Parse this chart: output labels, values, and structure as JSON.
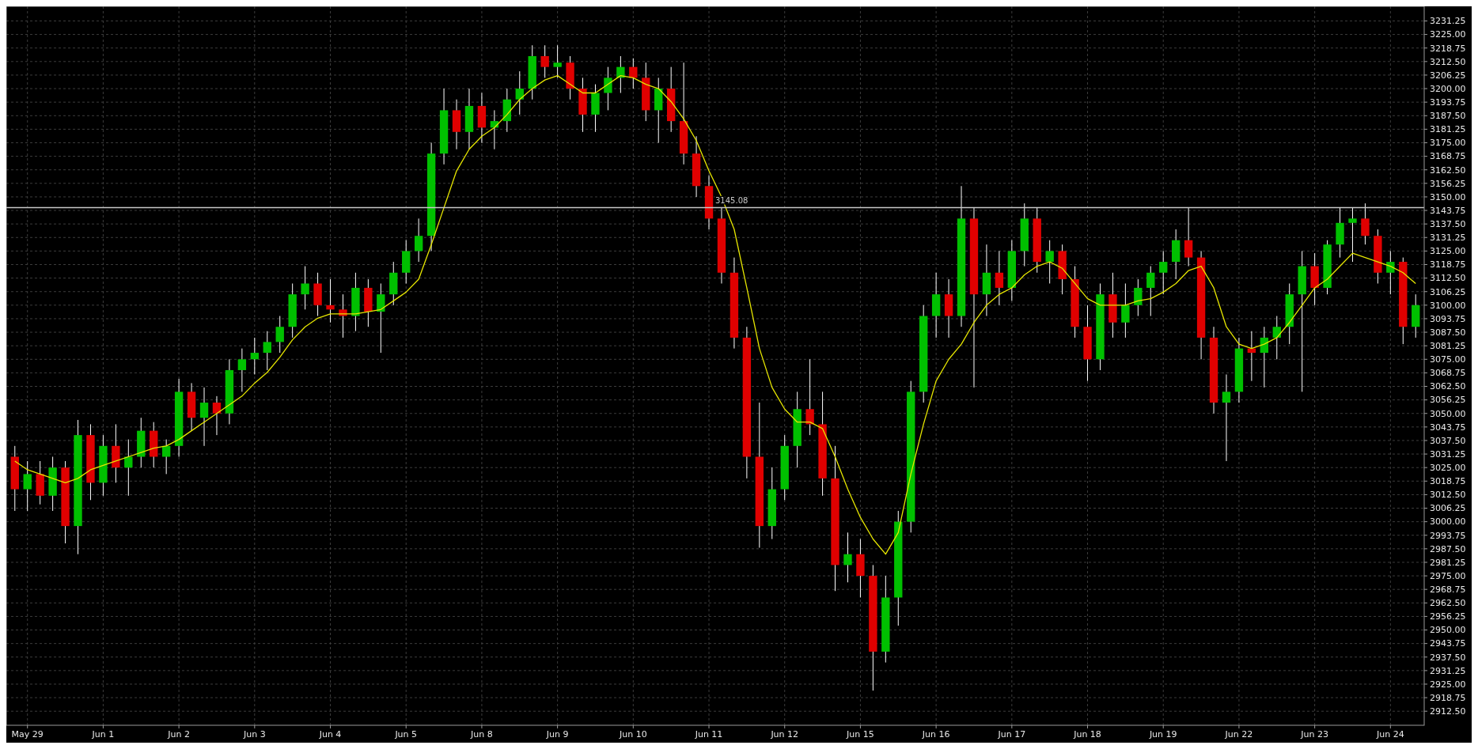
{
  "chart_data": {
    "type": "candlestick",
    "categories": [
      null,
      "May 29",
      null,
      null,
      null,
      null,
      null,
      "Jun 1",
      null,
      null,
      null,
      null,
      null,
      "Jun 2",
      null,
      null,
      null,
      null,
      null,
      "Jun 3",
      null,
      null,
      null,
      null,
      null,
      "Jun 4",
      null,
      null,
      null,
      null,
      null,
      "Jun 5",
      null,
      null,
      null,
      null,
      null,
      "Jun 8",
      null,
      null,
      null,
      null,
      null,
      "Jun 9",
      null,
      null,
      null,
      null,
      null,
      "Jun 10",
      null,
      null,
      null,
      null,
      null,
      "Jun 11",
      null,
      null,
      null,
      null,
      null,
      "Jun 12",
      null,
      null,
      null,
      null,
      null,
      "Jun 15",
      null,
      null,
      null,
      null,
      null,
      "Jun 16",
      null,
      null,
      null,
      null,
      null,
      "Jun 17",
      null,
      null,
      null,
      null,
      null,
      "Jun 18",
      null,
      null,
      null,
      null,
      null,
      "Jun 19",
      null,
      null,
      null,
      null,
      null,
      "Jun 22",
      null,
      null,
      null,
      null,
      null,
      "Jun 23",
      null,
      null,
      null,
      null,
      null,
      "Jun 24",
      null,
      null
    ],
    "ylim": [
      2906,
      3238
    ],
    "yticks": [
      {
        "value": 2912.5,
        "label": "2912.50"
      },
      2918.75,
      {
        "value": 2925,
        "label": "2925.00"
      },
      2931.25,
      {
        "value": 2937.5,
        "label": "2937.50"
      },
      2943.75,
      {
        "value": 2950,
        "label": "2950.00"
      },
      2956.25,
      {
        "value": 2962.5,
        "label": "2962.50"
      },
      2968.75,
      {
        "value": 2975,
        "label": "2975.00"
      },
      2981.25,
      {
        "value": 2987.5,
        "label": "2987.50"
      },
      2993.75,
      {
        "value": 3000,
        "label": "3000.00"
      },
      3006.25,
      {
        "value": 3012.5,
        "label": "3012.50"
      },
      3018.75,
      {
        "value": 3025,
        "label": "3025.00"
      },
      3031.25,
      {
        "value": 3037.5,
        "label": "3037.50"
      },
      3043.75,
      {
        "value": 3050,
        "label": "3050.00"
      },
      3056.25,
      {
        "value": 3062.5,
        "label": "3062.50"
      },
      3068.75,
      {
        "value": 3075,
        "label": "3075.00"
      },
      3081.25,
      {
        "value": 3087.5,
        "label": "3087.50"
      },
      3093.75,
      {
        "value": 3100,
        "label": "3100.00"
      },
      3106.25,
      {
        "value": 3112.5,
        "label": "3112.50"
      },
      3118.75,
      {
        "value": 3125,
        "label": "3125.00"
      },
      3131.25,
      {
        "value": 3137.5,
        "label": "3137.50"
      },
      3143.75,
      {
        "value": 3150,
        "label": "3150.00"
      },
      3156.25,
      {
        "value": 3162.5,
        "label": "3162.50"
      },
      3168.75,
      {
        "value": 3175,
        "label": "3175.00"
      },
      3181.25,
      {
        "value": 3187.5,
        "label": "3187.50"
      },
      3193.75,
      {
        "value": 3200,
        "label": "3200.00"
      },
      3206.25,
      {
        "value": 3212.5,
        "label": "3212.50"
      },
      3218.75,
      {
        "value": 3225,
        "label": "3225.00"
      },
      3231.25
    ],
    "grid": true,
    "ref_lines": [
      {
        "axis": "y",
        "value": 3145.08,
        "label": "3145.08",
        "color": "#c8c8c8"
      }
    ],
    "series": [
      {
        "type": "line",
        "color": "#e6e600",
        "values": [
          3028,
          3024,
          3022,
          3020,
          3018,
          3020,
          3024,
          3026,
          3028,
          3030,
          3032,
          3034,
          3035,
          3038,
          3042,
          3046,
          3050,
          3054,
          3058,
          3064,
          3069,
          3076,
          3084,
          3090,
          3094,
          3096,
          3096,
          3096,
          3097,
          3098,
          3102,
          3106,
          3112,
          3128,
          3145,
          3162,
          3172,
          3178,
          3182,
          3188,
          3195,
          3200,
          3204,
          3206,
          3202,
          3198,
          3198,
          3202,
          3206,
          3205,
          3202,
          3200,
          3194,
          3186,
          3176,
          3162,
          3150,
          3135,
          3108,
          3080,
          3062,
          3052,
          3046,
          3046,
          3043,
          3030,
          3015,
          3002,
          2992,
          2985,
          2995,
          3022,
          3045,
          3065,
          3075,
          3082,
          3092,
          3100,
          3105,
          3108,
          3114,
          3118,
          3120,
          3117,
          3110,
          3103,
          3100,
          3100,
          3100,
          3102,
          3103,
          3106,
          3110,
          3116,
          3118,
          3108,
          3090,
          3082,
          3080,
          3082,
          3085,
          3092,
          3100,
          3108,
          3112,
          3118,
          3124,
          3122,
          3120,
          3118,
          3115,
          3110
        ]
      },
      {
        "ohlc": [
          [
            3030,
            3035,
            3005,
            3015
          ],
          [
            3015,
            3028,
            3005,
            3022
          ],
          [
            3022,
            3028,
            3008,
            3012
          ],
          [
            3012,
            3030,
            3005,
            3025
          ],
          [
            3025,
            3028,
            2990,
            2998
          ],
          [
            2998,
            3047,
            2985,
            3040
          ],
          [
            3040,
            3045,
            3010,
            3018
          ],
          [
            3018,
            3040,
            3012,
            3035
          ],
          [
            3035,
            3045,
            3018,
            3025
          ],
          [
            3025,
            3038,
            3012,
            3030
          ],
          [
            3030,
            3048,
            3025,
            3042
          ],
          [
            3042,
            3046,
            3025,
            3030
          ],
          [
            3030,
            3038,
            3022,
            3035
          ],
          [
            3035,
            3066,
            3030,
            3060
          ],
          [
            3060,
            3064,
            3042,
            3048
          ],
          [
            3048,
            3062,
            3035,
            3055
          ],
          [
            3055,
            3058,
            3040,
            3050
          ],
          [
            3050,
            3075,
            3045,
            3070
          ],
          [
            3070,
            3080,
            3060,
            3075
          ],
          [
            3075,
            3085,
            3068,
            3078
          ],
          [
            3078,
            3088,
            3070,
            3083
          ],
          [
            3083,
            3095,
            3078,
            3090
          ],
          [
            3090,
            3110,
            3085,
            3105
          ],
          [
            3105,
            3118,
            3098,
            3110
          ],
          [
            3110,
            3115,
            3095,
            3100
          ],
          [
            3100,
            3112,
            3092,
            3098
          ],
          [
            3098,
            3105,
            3085,
            3095
          ],
          [
            3095,
            3115,
            3088,
            3108
          ],
          [
            3108,
            3112,
            3090,
            3097
          ],
          [
            3097,
            3110,
            3078,
            3105
          ],
          [
            3105,
            3120,
            3100,
            3115
          ],
          [
            3115,
            3130,
            3110,
            3125
          ],
          [
            3125,
            3140,
            3120,
            3132
          ],
          [
            3132,
            3175,
            3125,
            3170
          ],
          [
            3170,
            3200,
            3165,
            3190
          ],
          [
            3190,
            3195,
            3172,
            3180
          ],
          [
            3180,
            3200,
            3172,
            3192
          ],
          [
            3192,
            3198,
            3175,
            3182
          ],
          [
            3182,
            3190,
            3172,
            3185
          ],
          [
            3185,
            3200,
            3180,
            3195
          ],
          [
            3195,
            3208,
            3188,
            3200
          ],
          [
            3200,
            3220,
            3195,
            3215
          ],
          [
            3215,
            3220,
            3205,
            3210
          ],
          [
            3210,
            3220,
            3205,
            3212
          ],
          [
            3212,
            3215,
            3195,
            3200
          ],
          [
            3200,
            3205,
            3180,
            3188
          ],
          [
            3188,
            3202,
            3180,
            3198
          ],
          [
            3198,
            3210,
            3190,
            3205
          ],
          [
            3205,
            3215,
            3198,
            3210
          ],
          [
            3210,
            3214,
            3200,
            3205
          ],
          [
            3205,
            3212,
            3185,
            3190
          ],
          [
            3190,
            3205,
            3175,
            3200
          ],
          [
            3200,
            3210,
            3180,
            3185
          ],
          [
            3185,
            3212,
            3165,
            3170
          ],
          [
            3170,
            3178,
            3150,
            3155
          ],
          [
            3155,
            3160,
            3135,
            3140
          ],
          [
            3140,
            3145,
            3110,
            3115
          ],
          [
            3115,
            3122,
            3080,
            3085
          ],
          [
            3085,
            3090,
            3020,
            3030
          ],
          [
            3030,
            3055,
            2988,
            2998
          ],
          [
            2998,
            3025,
            2992,
            3015
          ],
          [
            3015,
            3040,
            3010,
            3035
          ],
          [
            3035,
            3060,
            3025,
            3052
          ],
          [
            3052,
            3075,
            3040,
            3045
          ],
          [
            3045,
            3060,
            3012,
            3020
          ],
          [
            3020,
            3035,
            2968,
            2980
          ],
          [
            2980,
            2995,
            2972,
            2985
          ],
          [
            2985,
            2992,
            2965,
            2975
          ],
          [
            2975,
            2980,
            2922,
            2940
          ],
          [
            2940,
            2975,
            2935,
            2965
          ],
          [
            2965,
            3005,
            2952,
            3000
          ],
          [
            3000,
            3065,
            2995,
            3060
          ],
          [
            3060,
            3100,
            3055,
            3095
          ],
          [
            3095,
            3115,
            3085,
            3105
          ],
          [
            3105,
            3112,
            3085,
            3095
          ],
          [
            3095,
            3155,
            3090,
            3140
          ],
          [
            3140,
            3145,
            3062,
            3105
          ],
          [
            3105,
            3128,
            3095,
            3115
          ],
          [
            3115,
            3125,
            3100,
            3108
          ],
          [
            3108,
            3130,
            3102,
            3125
          ],
          [
            3125,
            3147,
            3118,
            3140
          ],
          [
            3140,
            3145,
            3115,
            3120
          ],
          [
            3120,
            3130,
            3110,
            3125
          ],
          [
            3125,
            3128,
            3105,
            3112
          ],
          [
            3112,
            3118,
            3085,
            3090
          ],
          [
            3090,
            3100,
            3065,
            3075
          ],
          [
            3075,
            3110,
            3070,
            3105
          ],
          [
            3105,
            3115,
            3085,
            3092
          ],
          [
            3092,
            3110,
            3085,
            3100
          ],
          [
            3100,
            3112,
            3095,
            3108
          ],
          [
            3108,
            3118,
            3095,
            3115
          ],
          [
            3115,
            3125,
            3105,
            3120
          ],
          [
            3120,
            3135,
            3112,
            3130
          ],
          [
            3130,
            3145,
            3118,
            3122
          ],
          [
            3122,
            3125,
            3075,
            3085
          ],
          [
            3085,
            3090,
            3050,
            3055
          ],
          [
            3055,
            3068,
            3028,
            3060
          ],
          [
            3060,
            3085,
            3055,
            3080
          ],
          [
            3080,
            3088,
            3065,
            3078
          ],
          [
            3078,
            3090,
            3062,
            3085
          ],
          [
            3085,
            3095,
            3075,
            3090
          ],
          [
            3090,
            3110,
            3082,
            3105
          ],
          [
            3105,
            3125,
            3060,
            3118
          ],
          [
            3118,
            3124,
            3100,
            3108
          ],
          [
            3108,
            3130,
            3105,
            3128
          ],
          [
            3128,
            3145,
            3122,
            3138
          ],
          [
            3138,
            3145,
            3120,
            3140
          ],
          [
            3140,
            3147,
            3128,
            3132
          ],
          [
            3132,
            3135,
            3110,
            3115
          ],
          [
            3115,
            3125,
            3105,
            3120
          ],
          [
            3120,
            3122,
            3082,
            3090
          ],
          [
            3090,
            3105,
            3085,
            3100
          ]
        ],
        "colors": [
          "#e00000",
          "#00c000",
          "#e00000",
          "#00c000",
          "#e00000",
          "#00c000",
          "#e00000",
          "#00c000",
          "#e00000",
          "#00c000",
          "#00c000",
          "#e00000",
          "#00c000",
          "#00c000",
          "#e00000",
          "#00c000",
          "#e00000",
          "#00c000",
          "#00c000",
          "#00c000",
          "#00c000",
          "#00c000",
          "#00c000",
          "#00c000",
          "#e00000",
          "#e00000",
          "#e00000",
          "#00c000",
          "#e00000",
          "#00c000",
          "#00c000",
          "#00c000",
          "#00c000",
          "#00c000",
          "#00c000",
          "#e00000",
          "#00c000",
          "#e00000",
          "#00c000",
          "#00c000",
          "#00c000",
          "#00c000",
          "#e00000",
          "#00c000",
          "#e00000",
          "#e00000",
          "#00c000",
          "#00c000",
          "#00c000",
          "#e00000",
          "#e00000",
          "#00c000",
          "#e00000",
          "#e00000",
          "#e00000",
          "#e00000",
          "#e00000",
          "#e00000",
          "#e00000",
          "#e00000",
          "#00c000",
          "#00c000",
          "#00c000",
          "#e00000",
          "#e00000",
          "#e00000",
          "#00c000",
          "#e00000",
          "#e00000",
          "#00c000",
          "#00c000",
          "#00c000",
          "#00c000",
          "#00c000",
          "#e00000",
          "#00c000",
          "#e00000",
          "#00c000",
          "#e00000",
          "#00c000",
          "#00c000",
          "#e00000",
          "#00c000",
          "#e00000",
          "#e00000",
          "#e00000",
          "#00c000",
          "#e00000",
          "#00c000",
          "#00c000",
          "#00c000",
          "#00c000",
          "#00c000",
          "#e00000",
          "#e00000",
          "#e00000",
          "#00c000",
          "#00c000",
          "#e00000",
          "#00c000",
          "#00c000",
          "#00c000",
          "#00c000",
          "#e00000",
          "#00c000",
          "#00c000",
          "#00c000",
          "#e00000",
          "#e00000",
          "#00c000",
          "#e00000",
          "#00c000"
        ]
      }
    ]
  }
}
